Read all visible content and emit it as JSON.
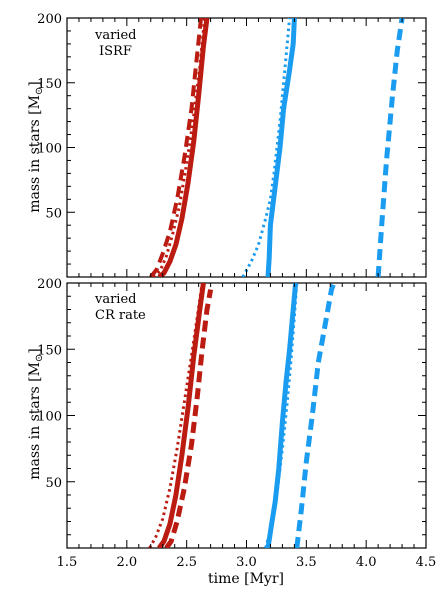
{
  "chart_data": [
    {
      "type": "line",
      "annotation": [
        "varied",
        "ISRF"
      ],
      "xlabel": "time [Myr]",
      "ylabel": "mass in stars [M",
      "ylabel_unit_symbol": "⊙",
      "ylabel_suffix": "]",
      "xlim": [
        1.5,
        4.5
      ],
      "ylim": [
        0,
        200
      ],
      "xticks": [
        1.5,
        2.0,
        2.5,
        3.0,
        3.5,
        4.0,
        4.5
      ],
      "xtick_labels": [
        "1.5",
        "2.0",
        "2.5",
        "3.0",
        "3.5",
        "4.0",
        "4.5"
      ],
      "yticks": [
        50,
        100,
        150,
        200
      ],
      "ytick_labels": [
        "50",
        "100",
        "150",
        "200"
      ],
      "grid": false,
      "series": [
        {
          "color": "#bb1b10",
          "style": "solid",
          "width": 5,
          "points": [
            [
              2.27,
              0
            ],
            [
              2.31,
              3
            ],
            [
              2.36,
              12
            ],
            [
              2.41,
              25
            ],
            [
              2.46,
              45
            ],
            [
              2.51,
              72
            ],
            [
              2.56,
              105
            ],
            [
              2.6,
              140
            ],
            [
              2.64,
              178
            ],
            [
              2.67,
              200
            ]
          ]
        },
        {
          "color": "#bb1b10",
          "style": "dashed",
          "width": 4,
          "points": [
            [
              2.2,
              0
            ],
            [
              2.25,
              6
            ],
            [
              2.3,
              18
            ],
            [
              2.36,
              35
            ],
            [
              2.42,
              60
            ],
            [
              2.48,
              92
            ],
            [
              2.54,
              130
            ],
            [
              2.58,
              165
            ],
            [
              2.62,
              200
            ]
          ]
        },
        {
          "color": "#bb1b10",
          "style": "dotted",
          "width": 3,
          "points": [
            [
              2.22,
              0
            ],
            [
              2.28,
              5
            ],
            [
              2.33,
              16
            ],
            [
              2.38,
              32
            ],
            [
              2.44,
              55
            ],
            [
              2.5,
              88
            ],
            [
              2.56,
              125
            ],
            [
              2.61,
              162
            ],
            [
              2.65,
              200
            ]
          ]
        },
        {
          "color": "#1a9cf0",
          "style": "solid",
          "width": 5,
          "points": [
            [
              3.18,
              0
            ],
            [
              3.19,
              15
            ],
            [
              3.2,
              40
            ],
            [
              3.24,
              70
            ],
            [
              3.28,
              100
            ],
            [
              3.31,
              130
            ],
            [
              3.36,
              160
            ],
            [
              3.39,
              180
            ],
            [
              3.4,
              200
            ]
          ]
        },
        {
          "color": "#1a9cf0",
          "style": "dotted",
          "width": 3,
          "points": [
            [
              2.97,
              0
            ],
            [
              3.04,
              12
            ],
            [
              3.1,
              25
            ],
            [
              3.16,
              45
            ],
            [
              3.2,
              60
            ],
            [
              3.23,
              80
            ],
            [
              3.28,
              120
            ],
            [
              3.32,
              160
            ],
            [
              3.36,
              200
            ]
          ]
        },
        {
          "color": "#1a9cf0",
          "style": "dashed",
          "width": 5,
          "points": [
            [
              4.1,
              0
            ],
            [
              4.13,
              40
            ],
            [
              4.17,
              90
            ],
            [
              4.22,
              140
            ],
            [
              4.26,
              175
            ],
            [
              4.3,
              200
            ]
          ]
        }
      ]
    },
    {
      "type": "line",
      "annotation": [
        "varied",
        "CR rate"
      ],
      "xlabel": "time [Myr]",
      "ylabel": "mass in stars [M",
      "ylabel_unit_symbol": "⊙",
      "ylabel_suffix": "]",
      "xlim": [
        1.5,
        4.5
      ],
      "ylim": [
        0,
        200
      ],
      "xticks": [
        1.5,
        2.0,
        2.5,
        3.0,
        3.5,
        4.0,
        4.5
      ],
      "xtick_labels": [
        "1.5",
        "2.0",
        "2.5",
        "3.0",
        "3.5",
        "4.0",
        "4.5"
      ],
      "yticks": [
        50,
        100,
        150,
        200
      ],
      "ytick_labels": [
        "50",
        "100",
        "150",
        "200"
      ],
      "grid": false,
      "series": [
        {
          "color": "#bb1b10",
          "style": "solid",
          "width": 5,
          "points": [
            [
              2.27,
              0
            ],
            [
              2.31,
              5
            ],
            [
              2.36,
              18
            ],
            [
              2.41,
              40
            ],
            [
              2.46,
              70
            ],
            [
              2.51,
              105
            ],
            [
              2.56,
              145
            ],
            [
              2.61,
              180
            ],
            [
              2.64,
              200
            ]
          ]
        },
        {
          "color": "#bb1b10",
          "style": "dashed",
          "width": 5,
          "points": [
            [
              2.33,
              0
            ],
            [
              2.37,
              5
            ],
            [
              2.42,
              20
            ],
            [
              2.48,
              45
            ],
            [
              2.54,
              78
            ],
            [
              2.59,
              115
            ],
            [
              2.63,
              150
            ],
            [
              2.67,
              180
            ],
            [
              2.7,
              195
            ]
          ]
        },
        {
          "color": "#bb1b10",
          "style": "dotted",
          "width": 3,
          "points": [
            [
              2.19,
              0
            ],
            [
              2.24,
              8
            ],
            [
              2.3,
              22
            ],
            [
              2.36,
              45
            ],
            [
              2.42,
              75
            ],
            [
              2.48,
              110
            ],
            [
              2.54,
              145
            ],
            [
              2.59,
              175
            ],
            [
              2.63,
              200
            ]
          ]
        },
        {
          "color": "#1a9cf0",
          "style": "solid",
          "width": 5,
          "points": [
            [
              3.18,
              0
            ],
            [
              3.21,
              18
            ],
            [
              3.24,
              35
            ],
            [
              3.27,
              60
            ],
            [
              3.3,
              95
            ],
            [
              3.33,
              125
            ],
            [
              3.36,
              150
            ],
            [
              3.38,
              170
            ],
            [
              3.4,
              190
            ],
            [
              3.41,
              200
            ]
          ]
        },
        {
          "color": "#1a9cf0",
          "style": "dotted",
          "width": 3,
          "points": [
            [
              3.16,
              0
            ],
            [
              3.19,
              10
            ],
            [
              3.22,
              25
            ],
            [
              3.26,
              45
            ],
            [
              3.3,
              75
            ],
            [
              3.34,
              110
            ],
            [
              3.37,
              140
            ],
            [
              3.4,
              175
            ],
            [
              3.42,
              200
            ]
          ]
        },
        {
          "color": "#1a9cf0",
          "style": "dashed",
          "width": 5,
          "points": [
            [
              3.42,
              0
            ],
            [
              3.46,
              30
            ],
            [
              3.5,
              65
            ],
            [
              3.55,
              100
            ],
            [
              3.6,
              140
            ],
            [
              3.65,
              165
            ],
            [
              3.71,
              195
            ],
            [
              3.73,
              200
            ]
          ]
        }
      ]
    }
  ]
}
